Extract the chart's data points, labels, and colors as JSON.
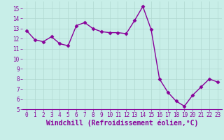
{
  "x": [
    0,
    1,
    2,
    3,
    4,
    5,
    6,
    7,
    8,
    9,
    10,
    11,
    12,
    13,
    14,
    15,
    16,
    17,
    18,
    19,
    20,
    21,
    22,
    23
  ],
  "y": [
    12.8,
    11.9,
    11.7,
    12.2,
    11.5,
    11.3,
    13.3,
    13.6,
    13.0,
    12.7,
    12.6,
    12.6,
    12.5,
    13.8,
    15.2,
    12.9,
    8.0,
    6.7,
    5.8,
    5.3,
    6.4,
    7.2,
    8.0,
    7.7
  ],
  "line_color": "#880099",
  "marker": "D",
  "marker_size": 2.5,
  "bg_color": "#c8eee8",
  "grid_color": "#b0d8d0",
  "xlabel": "Windchill (Refroidissement éolien,°C)",
  "xlabel_color": "#880099",
  "xlim": [
    -0.5,
    23.5
  ],
  "ylim": [
    5,
    15.7
  ],
  "yticks": [
    5,
    6,
    7,
    8,
    9,
    10,
    11,
    12,
    13,
    14,
    15
  ],
  "xticks": [
    0,
    1,
    2,
    3,
    4,
    5,
    6,
    7,
    8,
    9,
    10,
    11,
    12,
    13,
    14,
    15,
    16,
    17,
    18,
    19,
    20,
    21,
    22,
    23
  ],
  "tick_color": "#880099",
  "tick_fontsize": 5.5,
  "xlabel_fontsize": 7.0,
  "linewidth": 1.0
}
